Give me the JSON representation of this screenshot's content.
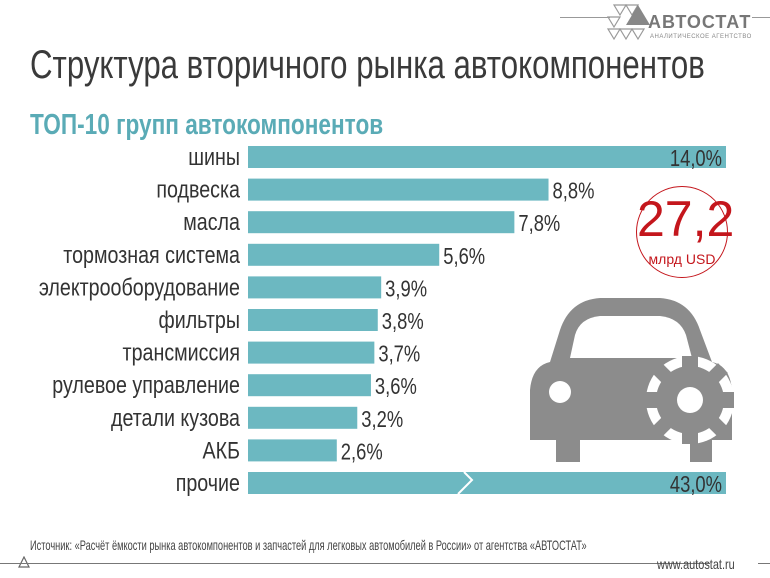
{
  "brand": {
    "name": "АВТОСТАТ",
    "tagline": "АНАЛИТИЧЕСКОЕ АГЕНТСТВО"
  },
  "title": "Структура вторичного рынка автокомпонентов",
  "subtitle": "ТОП-10 групп автокомпонентов",
  "total": {
    "value": "27,2",
    "unit": "млрд USD"
  },
  "colors": {
    "bar": "#6cb8c1",
    "accent": "#c4161c",
    "subtitle": "#5aabb6"
  },
  "chart_data": {
    "type": "bar",
    "orientation": "horizontal",
    "categories": [
      "шины",
      "подвеска",
      "масла",
      "тормозная система",
      "электрооборудование",
      "фильтры",
      "трансмиссия",
      "рулевое управление",
      "детали кузова",
      "АКБ",
      "прочие"
    ],
    "values": [
      14.0,
      8.8,
      7.8,
      5.6,
      3.9,
      3.8,
      3.7,
      3.6,
      3.2,
      2.6,
      43.0
    ],
    "value_labels": [
      "14,0%",
      "8,8%",
      "7,8%",
      "5,6%",
      "3,9%",
      "3,8%",
      "3,7%",
      "3,6%",
      "3,2%",
      "2,6%",
      "43,0%"
    ],
    "broken_bars": [
      "прочие"
    ],
    "unit": "%",
    "grid": false
  },
  "source": "Источник: «Расчёт ёмкости рынка автокомпонентов и запчастей для легковых автомобилей в России» от агентства «АВТОСТАТ»",
  "website": "www.autostat.ru",
  "icons": [
    "autostat-logo-icon",
    "car-gear-icon"
  ]
}
